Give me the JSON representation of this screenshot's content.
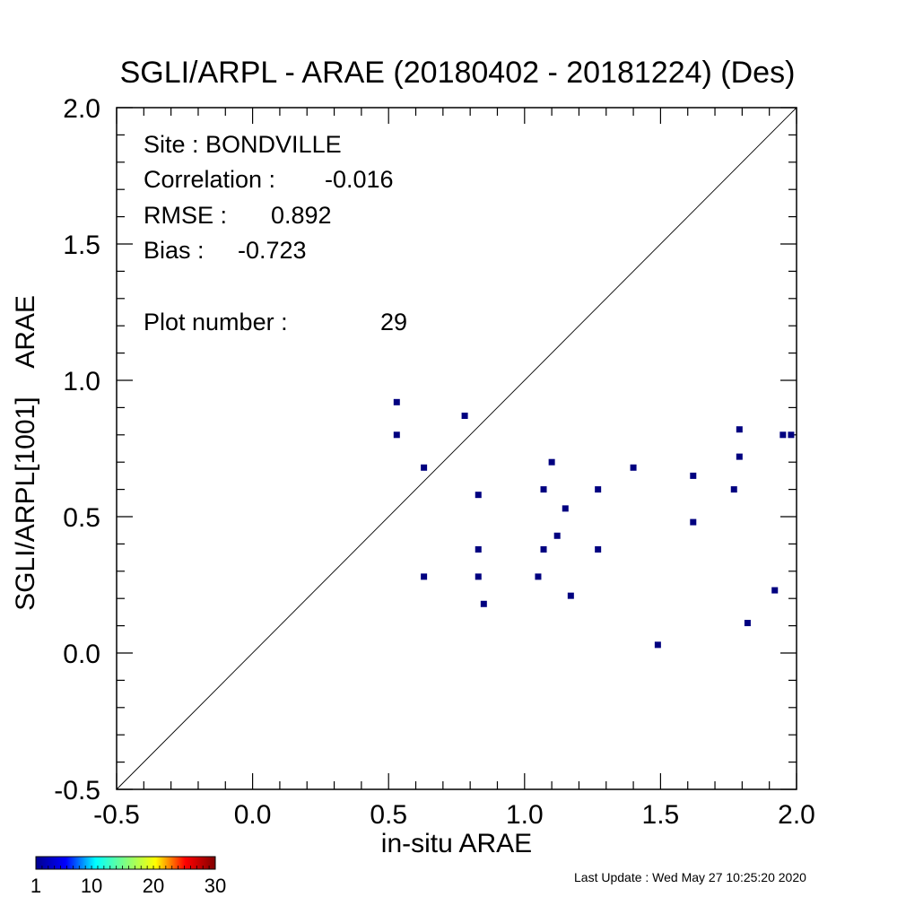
{
  "chart_data": {
    "type": "scatter",
    "title": "SGLI/ARPL - ARAE (20180402 - 20181224) (Des)",
    "xlabel": "in-situ ARAE",
    "ylabel": "SGLI/ARPL[1001]    ARAE",
    "xlim": [
      -0.5,
      2.0
    ],
    "ylim": [
      -0.5,
      2.0
    ],
    "xticks": [
      "-0.5",
      "0.0",
      "0.5",
      "1.0",
      "1.5",
      "2.0"
    ],
    "yticks": [
      "-0.5",
      "0.0",
      "0.5",
      "1.0",
      "1.5",
      "2.0"
    ],
    "reference_line": "1:1",
    "point_color": "#000080",
    "stats": {
      "site": "Site : BONDVILLE",
      "correlation_label": "Correlation :",
      "correlation": "-0.016",
      "rmse_label": "RMSE :",
      "rmse": "0.892",
      "bias_label": "Bias :",
      "bias": "-0.723",
      "plot_number_label": "Plot number :",
      "plot_number": "29"
    },
    "points": [
      [
        0.53,
        0.92
      ],
      [
        0.53,
        0.8
      ],
      [
        0.63,
        0.68
      ],
      [
        0.63,
        0.28
      ],
      [
        0.78,
        0.87
      ],
      [
        0.83,
        0.58
      ],
      [
        0.83,
        0.38
      ],
      [
        0.83,
        0.28
      ],
      [
        0.85,
        0.18
      ],
      [
        1.05,
        0.28
      ],
      [
        1.07,
        0.6
      ],
      [
        1.07,
        0.38
      ],
      [
        1.1,
        0.7
      ],
      [
        1.12,
        0.43
      ],
      [
        1.15,
        0.53
      ],
      [
        1.17,
        0.21
      ],
      [
        1.27,
        0.6
      ],
      [
        1.27,
        0.38
      ],
      [
        1.4,
        0.68
      ],
      [
        1.49,
        0.03
      ],
      [
        1.62,
        0.65
      ],
      [
        1.62,
        0.48
      ],
      [
        1.77,
        0.6
      ],
      [
        1.79,
        0.82
      ],
      [
        1.79,
        0.72
      ],
      [
        1.82,
        0.11
      ],
      [
        1.92,
        0.23
      ],
      [
        1.95,
        0.8
      ],
      [
        1.98,
        0.8
      ]
    ]
  },
  "colorbar": {
    "tick_labels": [
      "1",
      "10",
      "20",
      "30"
    ],
    "colors": [
      "#00008f",
      "#0000ff",
      "#00ffff",
      "#80ff80",
      "#ffff00",
      "#ff0000",
      "#800000"
    ]
  },
  "footer": {
    "last_update": "Last Update : Wed May 27 10:25:20 2020"
  }
}
